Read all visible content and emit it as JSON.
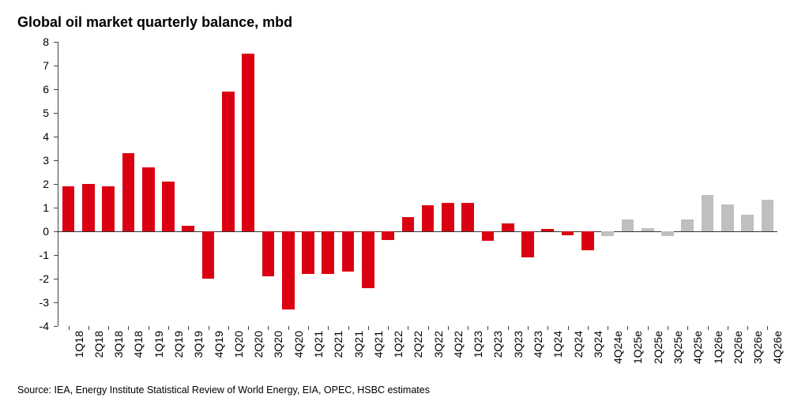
{
  "chart": {
    "type": "bar",
    "title": "Global oil market quarterly balance, mbd",
    "title_fontsize": 18,
    "title_weight": "700",
    "title_color": "#000000",
    "background_color": "#ffffff",
    "ylim": [
      -4,
      8
    ],
    "ytick_step": 1,
    "yticks": [
      -4,
      -3,
      -2,
      -1,
      0,
      1,
      2,
      3,
      4,
      5,
      6,
      7,
      8
    ],
    "axis_color": "#444444",
    "zero_line_color": "#333333",
    "tick_label_fontsize": 14,
    "x_label_rotation": -90,
    "bar_width_ratio": 0.62,
    "series_colors": {
      "actual": "#db0011",
      "estimate": "#bfbfbf"
    },
    "categories": [
      "1Q18",
      "2Q18",
      "3Q18",
      "4Q18",
      "1Q19",
      "2Q19",
      "3Q19",
      "4Q19",
      "1Q20",
      "2Q20",
      "3Q20",
      "4Q20",
      "1Q21",
      "2Q21",
      "3Q21",
      "4Q21",
      "1Q22",
      "2Q22",
      "3Q22",
      "4Q22",
      "1Q23",
      "2Q23",
      "3Q23",
      "4Q23",
      "1Q24",
      "2Q24",
      "3Q24",
      "4Q24e",
      "1Q25e",
      "2Q25e",
      "3Q25e",
      "4Q25e",
      "1Q26e",
      "2Q26e",
      "3Q26e",
      "4Q26e"
    ],
    "values": [
      1.9,
      2.0,
      1.9,
      3.3,
      2.7,
      2.1,
      0.25,
      -2.0,
      5.9,
      7.5,
      -1.9,
      -3.3,
      -1.8,
      -1.8,
      -1.7,
      -2.4,
      -0.35,
      0.6,
      1.1,
      1.2,
      1.2,
      -0.4,
      0.35,
      -1.1,
      0.1,
      -0.15,
      -0.8,
      -0.2,
      0.5,
      0.15,
      -0.2,
      0.5,
      1.55,
      1.15,
      0.7,
      1.35
    ],
    "value_series": [
      "actual",
      "actual",
      "actual",
      "actual",
      "actual",
      "actual",
      "actual",
      "actual",
      "actual",
      "actual",
      "actual",
      "actual",
      "actual",
      "actual",
      "actual",
      "actual",
      "actual",
      "actual",
      "actual",
      "actual",
      "actual",
      "actual",
      "actual",
      "actual",
      "actual",
      "actual",
      "actual",
      "estimate",
      "estimate",
      "estimate",
      "estimate",
      "estimate",
      "estimate",
      "estimate",
      "estimate",
      "estimate"
    ],
    "source": "Source: IEA, Energy Institute Statistical Review of World Energy, EIA, OPEC, HSBC estimates",
    "source_fontsize": 12.5,
    "source_color": "#000000"
  }
}
